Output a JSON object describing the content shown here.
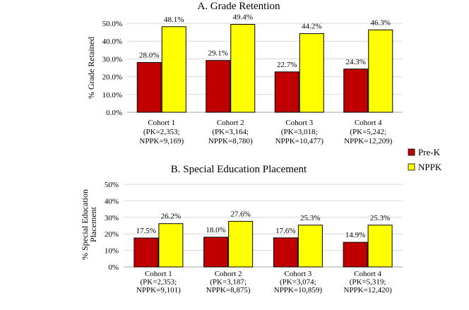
{
  "chart_data": [
    {
      "type": "bar",
      "title": "A. Grade Retention",
      "ylabel": "% Grade Retained",
      "xlabel": "",
      "ylim": [
        0,
        50
      ],
      "yticks": [
        "0.0%",
        "10.0%",
        "20.0%",
        "30.0%",
        "40.0%",
        "50.0%"
      ],
      "categories": [
        [
          "Cohort 1",
          "(PK=2,353;",
          "NPPK=9,169)"
        ],
        [
          "Cohort 2",
          "(PK=3,164;",
          "NPPK=8,780)"
        ],
        [
          "Cohort 3",
          "(PK=3,018;",
          "NPPK=10,477)"
        ],
        [
          "Cohort 4",
          "(PK=5,242;",
          "NPPK=12,209)"
        ]
      ],
      "series": [
        {
          "name": "Pre-K",
          "color": "#c00000",
          "values": [
            28.0,
            29.1,
            22.7,
            24.3
          ],
          "labels": [
            "28.0%",
            "29.1%",
            "22.7%",
            "24.3%"
          ]
        },
        {
          "name": "NPPK",
          "color": "#ffff00",
          "values": [
            48.1,
            49.4,
            44.2,
            46.3
          ],
          "labels": [
            "48.1%",
            "49.4%",
            "44.2%",
            "46.3%"
          ]
        }
      ]
    },
    {
      "type": "bar",
      "title": "B. Special Education Placement",
      "ylabel": [
        "% Special Education",
        "Placement"
      ],
      "xlabel": "",
      "ylim": [
        0,
        50
      ],
      "yticks": [
        "0%",
        "10%",
        "20%",
        "30%",
        "40%",
        "50%"
      ],
      "categories": [
        [
          "Cohort 1",
          "(PK=2,353;",
          "NPPK=9,101)"
        ],
        [
          "Cohort 2",
          "(PK=3,187;",
          "NPPK=8,875)"
        ],
        [
          "Cohort 3",
          "(PK=3,074;",
          "NPPK=10,859)"
        ],
        [
          "Cohort 4",
          "(PK=5,319;",
          "NPPK=12,420)"
        ]
      ],
      "series": [
        {
          "name": "Pre-K",
          "color": "#c00000",
          "values": [
            17.5,
            18.0,
            17.6,
            14.9
          ],
          "labels": [
            "17.5%",
            "18.0%",
            "17.6%",
            "14.9%"
          ]
        },
        {
          "name": "NPPK",
          "color": "#ffff00",
          "values": [
            26.2,
            27.6,
            25.3,
            25.3
          ],
          "labels": [
            "26.2%",
            "27.6%",
            "25.3%",
            "25.3%"
          ]
        }
      ]
    }
  ],
  "legend": {
    "items": [
      {
        "label": "Pre-K",
        "color": "#c00000"
      },
      {
        "label": "NPPK",
        "color": "#ffff00"
      }
    ],
    "position": "right"
  }
}
